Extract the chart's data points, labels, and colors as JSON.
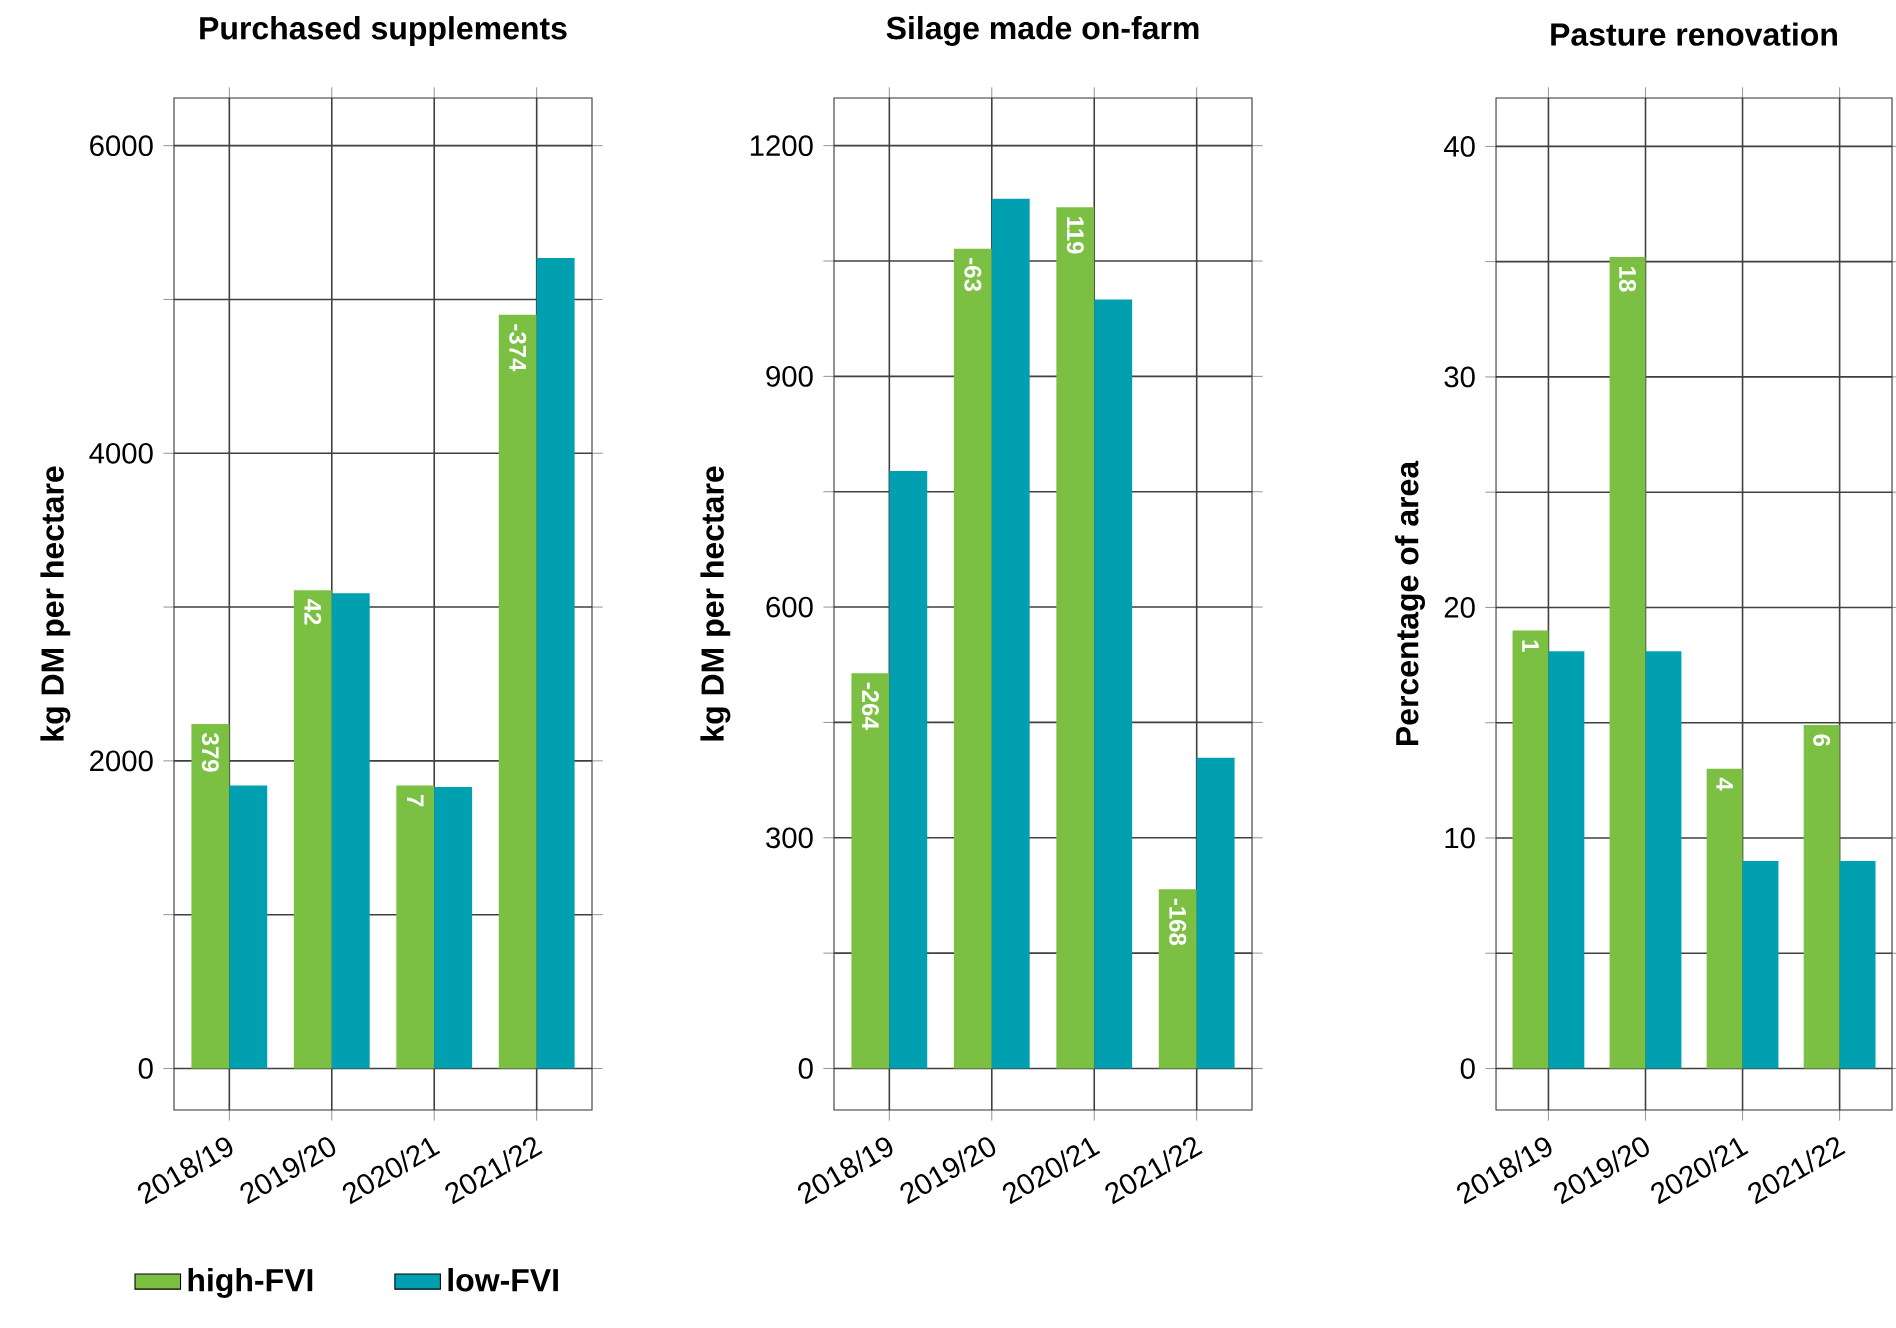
{
  "chart_data": [
    {
      "type": "bar",
      "title": "Purchased supplements",
      "ylabel": "kg DM per hectare",
      "categories": [
        "2018/19",
        "2019/20",
        "2020/21",
        "2021/22"
      ],
      "series": [
        {
          "name": "high-FVI",
          "color": "#7bc043",
          "values": [
            2240,
            3110,
            1840,
            4900
          ]
        },
        {
          "name": "low-FVI",
          "color": "#00a0b0",
          "values": [
            1840,
            3090,
            1830,
            5270
          ]
        }
      ],
      "annotations": [
        {
          "text": "379",
          "x": "2018/19",
          "y": 2240
        },
        {
          "text": "42",
          "x": "2019/20",
          "y": 3110
        },
        {
          "text": "7",
          "x": "2020/21",
          "y": 1840
        },
        {
          "text": "-374",
          "x": "2021/22",
          "y": 4900
        }
      ],
      "ylim": [
        -270,
        6310
      ],
      "yticks": [
        0,
        {
          "value": 1000,
          "label": null
        },
        2000,
        {
          "value": 3000,
          "label": null
        },
        4000,
        {
          "value": 5000,
          "label": null
        },
        6000
      ],
      "grid": true,
      "legend": "bottom"
    },
    {
      "type": "bar",
      "title": "Silage made on-farm",
      "ylabel": "kg DM per hectare",
      "categories": [
        "2018/19",
        "2019/20",
        "2020/21",
        "2021/22"
      ],
      "series": [
        {
          "color": "#7bc043",
          "values": [
            514,
            1066,
            1120,
            233
          ]
        },
        {
          "color": "#00a0b0",
          "values": [
            777,
            1131,
            1000,
            404
          ]
        }
      ],
      "annotations": [
        {
          "text": "-264",
          "x": "2018/19",
          "y": 514
        },
        {
          "text": "-63",
          "x": "2019/20",
          "y": 1066
        },
        {
          "text": "119",
          "x": "2020/21",
          "y": 1120
        },
        {
          "text": "-168",
          "x": "2021/22",
          "y": 233
        }
      ],
      "ylim": [
        -54,
        1262
      ],
      "yticks": [
        0,
        {
          "value": 150,
          "label": null
        },
        300,
        {
          "value": 450,
          "label": null
        },
        600,
        {
          "value": 750,
          "label": null
        },
        900,
        {
          "value": 1050,
          "label": null
        },
        1200
      ],
      "grid": true
    },
    {
      "type": "bar",
      "title": "Pasture renovation",
      "ylabel": "Percentage of area",
      "categories": [
        "2018/19",
        "2019/20",
        "2020/21",
        "2021/22"
      ],
      "series": [
        {
          "color": "#7bc043",
          "values": [
            19.0,
            35.2,
            13.0,
            14.9
          ]
        },
        {
          "color": "#00a0b0",
          "values": [
            18.1,
            18.1,
            9.0,
            9.0
          ]
        }
      ],
      "annotations": [
        {
          "text": "1",
          "x": "2018/19",
          "y": 19.0
        },
        {
          "text": "18",
          "x": "2019/20",
          "y": 35.2
        },
        {
          "text": "4",
          "x": "2020/21",
          "y": 13.0
        },
        {
          "text": "6",
          "x": "2021/22",
          "y": 14.9
        }
      ],
      "ylim": [
        -1.8,
        42.1
      ],
      "yticks": [
        0,
        {
          "value": 5,
          "label": null
        },
        10,
        {
          "value": 15,
          "label": null
        },
        20,
        {
          "value": 25,
          "label": null
        },
        30,
        {
          "value": 35,
          "label": null
        },
        40
      ],
      "grid": true
    }
  ]
}
